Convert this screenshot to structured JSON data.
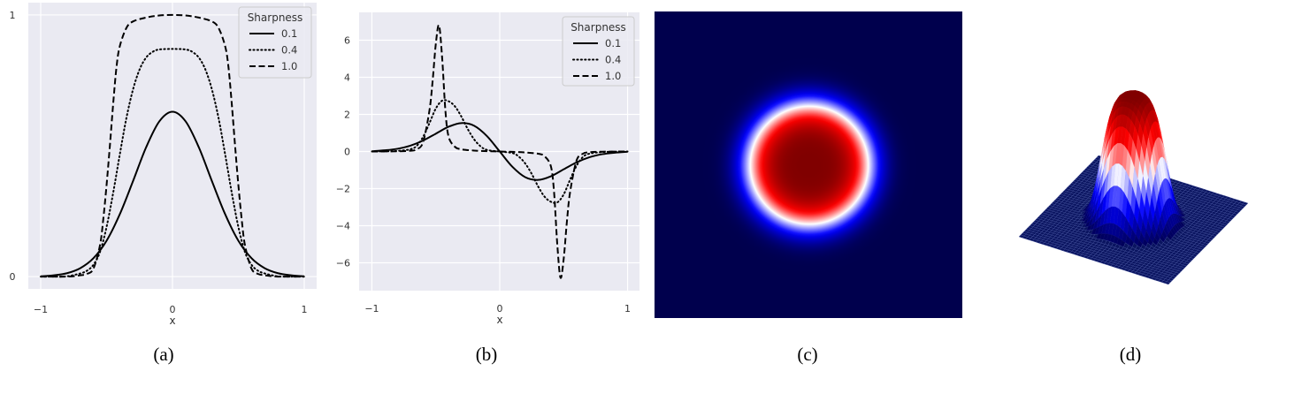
{
  "chart_data": [
    {
      "type": "line",
      "caption": "(a)",
      "xlabel": "x",
      "ylabel": "",
      "xlim": [
        -1.094,
        1.094
      ],
      "ylim": [
        -0.047,
        1.047
      ],
      "grid": true,
      "legend_placement": "top-right",
      "legend_title": "Sharpness",
      "xticks": [
        {
          "v": -1,
          "label": "−1"
        },
        {
          "v": 0,
          "label": "0"
        },
        {
          "v": 1,
          "label": "1"
        }
      ],
      "yticks": [
        {
          "v": 0,
          "label": "0"
        },
        {
          "v": 1,
          "label": "1"
        }
      ],
      "series": [
        {
          "name": "0.1",
          "style": "solid",
          "x": [
            -1,
            -0.9,
            -0.8,
            -0.7,
            -0.6,
            -0.5,
            -0.4,
            -0.3,
            -0.2,
            -0.1,
            0,
            0.1,
            0.2,
            0.3,
            0.4,
            0.5,
            0.6,
            0.7,
            0.8,
            0.9,
            1
          ],
          "y": [
            0.001,
            0.005,
            0.013,
            0.032,
            0.07,
            0.137,
            0.238,
            0.364,
            0.494,
            0.593,
            0.63,
            0.593,
            0.494,
            0.364,
            0.238,
            0.137,
            0.07,
            0.032,
            0.013,
            0.005,
            0.001
          ]
        },
        {
          "name": "0.4",
          "style": "dotted",
          "x": [
            -1,
            -0.9,
            -0.8,
            -0.7,
            -0.65,
            -0.6,
            -0.55,
            -0.5,
            -0.45,
            -0.4,
            -0.35,
            -0.3,
            -0.25,
            -0.2,
            -0.15,
            -0.1,
            0,
            0.1,
            0.15,
            0.2,
            0.25,
            0.3,
            0.35,
            0.4,
            0.45,
            0.5,
            0.55,
            0.6,
            0.65,
            0.7,
            0.8,
            0.9,
            1
          ],
          "y": [
            0,
            0,
            0.001,
            0.012,
            0.022,
            0.045,
            0.094,
            0.19,
            0.32,
            0.466,
            0.605,
            0.714,
            0.791,
            0.837,
            0.859,
            0.868,
            0.87,
            0.868,
            0.859,
            0.837,
            0.791,
            0.714,
            0.605,
            0.466,
            0.32,
            0.19,
            0.094,
            0.045,
            0.022,
            0.012,
            0.001,
            0,
            0
          ]
        },
        {
          "name": "1.0",
          "style": "dashed",
          "x": [
            -1,
            -0.8,
            -0.7,
            -0.65,
            -0.6,
            -0.55,
            -0.525,
            -0.5,
            -0.475,
            -0.45,
            -0.425,
            -0.4,
            -0.35,
            -0.3,
            -0.2,
            -0.1,
            0,
            0.1,
            0.2,
            0.3,
            0.35,
            0.4,
            0.425,
            0.45,
            0.475,
            0.5,
            0.525,
            0.55,
            0.6,
            0.65,
            0.7,
            0.8,
            1
          ],
          "y": [
            0,
            0,
            0.005,
            0.01,
            0.03,
            0.12,
            0.22,
            0.35,
            0.5,
            0.66,
            0.8,
            0.88,
            0.95,
            0.975,
            0.99,
            0.998,
            1,
            0.998,
            0.99,
            0.975,
            0.95,
            0.88,
            0.8,
            0.66,
            0.5,
            0.35,
            0.22,
            0.12,
            0.03,
            0.01,
            0.005,
            0,
            0
          ]
        }
      ]
    },
    {
      "type": "line",
      "caption": "(b)",
      "xlabel": "x",
      "ylabel": "",
      "xlim": [
        -1.1,
        1.093
      ],
      "ylim": [
        -7.5,
        7.5
      ],
      "grid": true,
      "legend_placement": "top-right",
      "legend_title": "Sharpness",
      "xticks": [
        {
          "v": -1,
          "label": "−1"
        },
        {
          "v": 0,
          "label": "0"
        },
        {
          "v": 1,
          "label": "1"
        }
      ],
      "yticks": [
        {
          "v": -6,
          "label": "−6"
        },
        {
          "v": -4,
          "label": "−4"
        },
        {
          "v": -2,
          "label": "−2"
        },
        {
          "v": 0,
          "label": "0"
        },
        {
          "v": 2,
          "label": "2"
        },
        {
          "v": 4,
          "label": "4"
        },
        {
          "v": 6,
          "label": "6"
        }
      ],
      "series": [
        {
          "name": "0.1",
          "style": "solid",
          "x": [
            -1,
            -0.9,
            -0.8,
            -0.7,
            -0.6,
            -0.5,
            -0.4,
            -0.3,
            -0.2,
            -0.1,
            0,
            0.1,
            0.2,
            0.3,
            0.4,
            0.5,
            0.6,
            0.7,
            0.8,
            0.9,
            1
          ],
          "y": [
            0.014,
            0.063,
            0.146,
            0.314,
            0.589,
            0.96,
            1.335,
            1.532,
            1.386,
            0.831,
            0,
            -0.831,
            -1.386,
            -1.532,
            -1.335,
            -0.96,
            -0.589,
            -0.314,
            -0.146,
            -0.063,
            -0.014
          ]
        },
        {
          "name": "0.4",
          "style": "dotted",
          "x": [
            -1,
            -0.9,
            -0.8,
            -0.7,
            -0.65,
            -0.6,
            -0.55,
            -0.5,
            -0.45,
            -0.4,
            -0.35,
            -0.3,
            -0.25,
            -0.2,
            -0.15,
            -0.1,
            0,
            0.1,
            0.15,
            0.2,
            0.25,
            0.3,
            0.35,
            0.4,
            0.45,
            0.5,
            0.55,
            0.6,
            0.65,
            0.7,
            0.8,
            0.9,
            1
          ],
          "y": [
            0,
            0.01,
            0.03,
            0.12,
            0.3,
            0.78,
            1.525,
            2.317,
            2.744,
            2.709,
            2.43,
            1.881,
            1.206,
            0.652,
            0.282,
            0.085,
            0,
            -0.085,
            -0.282,
            -0.652,
            -1.206,
            -1.881,
            -2.43,
            -2.709,
            -2.744,
            -2.317,
            -1.525,
            -0.78,
            -0.3,
            -0.12,
            -0.03,
            -0.01,
            0
          ]
        },
        {
          "name": "1.0",
          "style": "dashed",
          "x": [
            -1,
            -0.8,
            -0.7,
            -0.65,
            -0.6,
            -0.55,
            -0.525,
            -0.5,
            -0.475,
            -0.45,
            -0.425,
            -0.4,
            -0.35,
            -0.3,
            -0.2,
            -0.1,
            0,
            0.1,
            0.2,
            0.3,
            0.35,
            0.4,
            0.425,
            0.45,
            0.475,
            0.5,
            0.525,
            0.55,
            0.6,
            0.65,
            0.7,
            0.8,
            1
          ],
          "y": [
            0,
            0.01,
            0.04,
            0.12,
            0.5,
            2.2,
            3.8,
            5.8,
            6.8,
            5.0,
            2.2,
            0.8,
            0.25,
            0.12,
            0.05,
            0.02,
            0,
            -0.02,
            -0.05,
            -0.12,
            -0.25,
            -0.8,
            -2.2,
            -5.0,
            -6.8,
            -5.8,
            -3.8,
            -2.2,
            -0.5,
            -0.12,
            -0.04,
            -0.01,
            0
          ]
        }
      ]
    },
    {
      "type": "heatmap",
      "caption": "(c)",
      "domain": [
        -1,
        1
      ],
      "width": 0.42,
      "exponent": 4,
      "colors": {
        "low": "#00004d",
        "mid_low": "#0000ff",
        "mid": "#ffffff",
        "mid_high": "#ff0000",
        "high": "#800000"
      }
    },
    {
      "type": "surface",
      "caption": "(d)",
      "domain": [
        -1,
        1
      ],
      "width": 0.42,
      "exponent": 4,
      "zlim": [
        0,
        1
      ]
    }
  ],
  "style": {
    "plot_bg": "#eaeaf2",
    "grid": "#ffffff",
    "line": "#000000",
    "legend_bg": "#eaeaf2",
    "legend_border": "#cccccc"
  }
}
